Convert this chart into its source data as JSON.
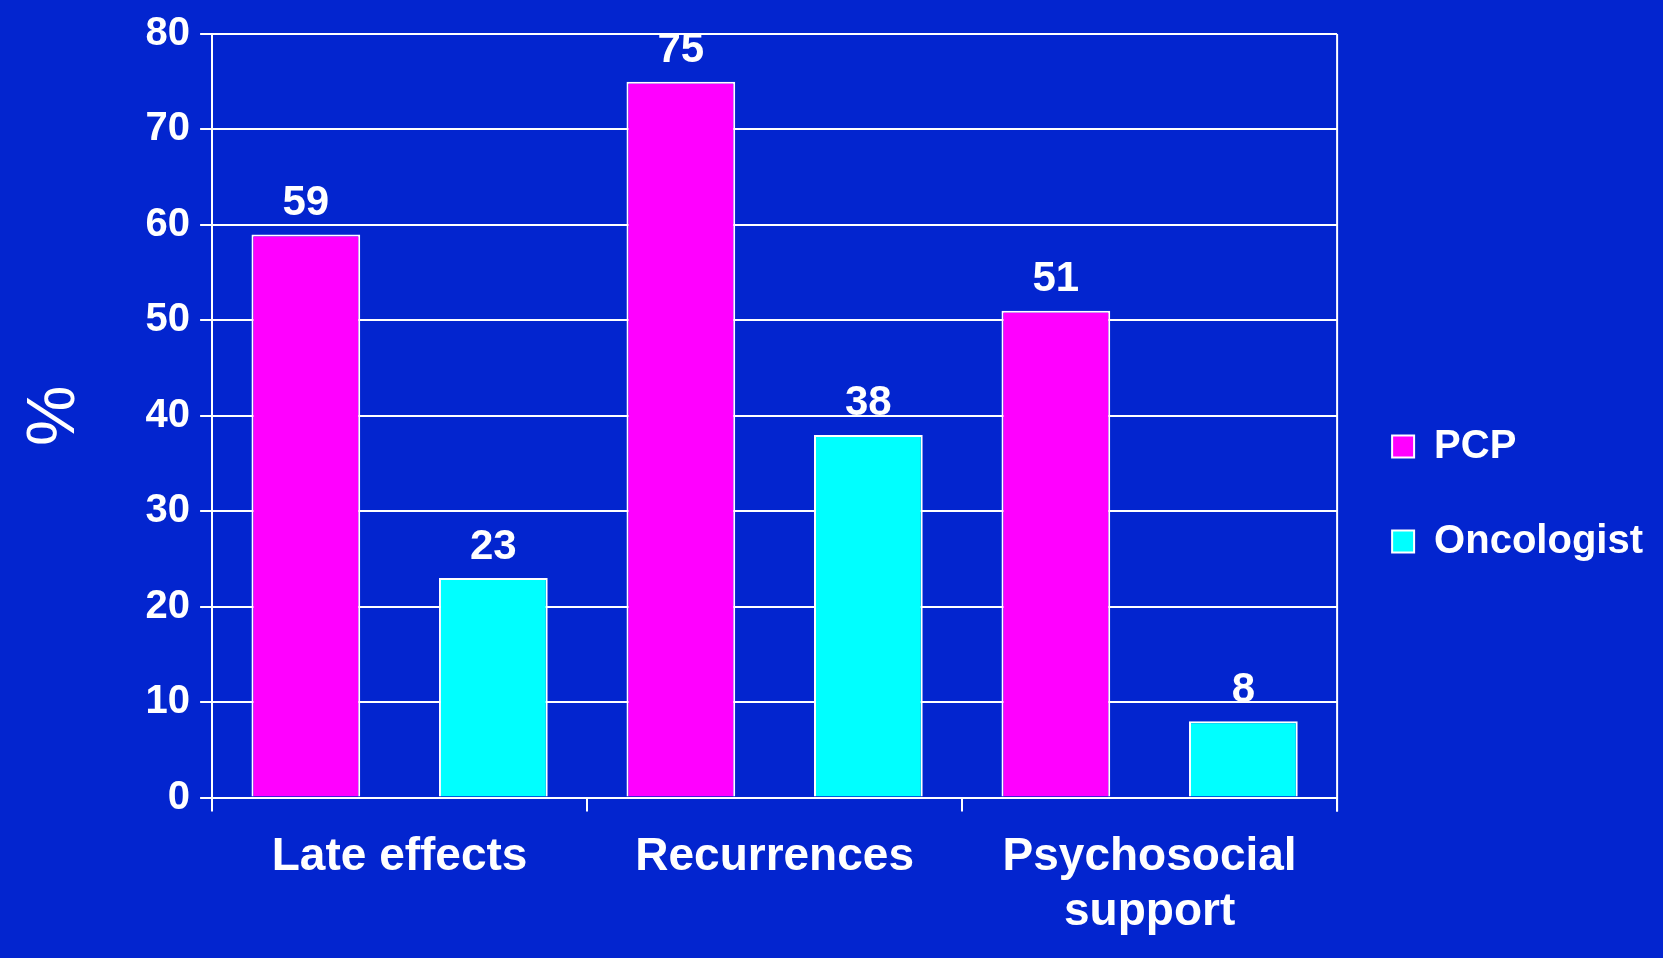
{
  "chart_data": {
    "type": "bar",
    "ylabel": "%",
    "categories": [
      "Late effects",
      "Recurrences",
      "Psychosocial support"
    ],
    "series": [
      {
        "name": "PCP",
        "color": "#ff00ff",
        "values": [
          59,
          75,
          51
        ]
      },
      {
        "name": "Oncologist",
        "color": "#00ffff",
        "values": [
          23,
          38,
          8
        ]
      }
    ],
    "ylim": [
      0,
      80
    ],
    "yticks": [
      0,
      10,
      20,
      30,
      40,
      50,
      60,
      70,
      80
    ],
    "grid": "y",
    "legend": "right",
    "data_labels": true
  }
}
